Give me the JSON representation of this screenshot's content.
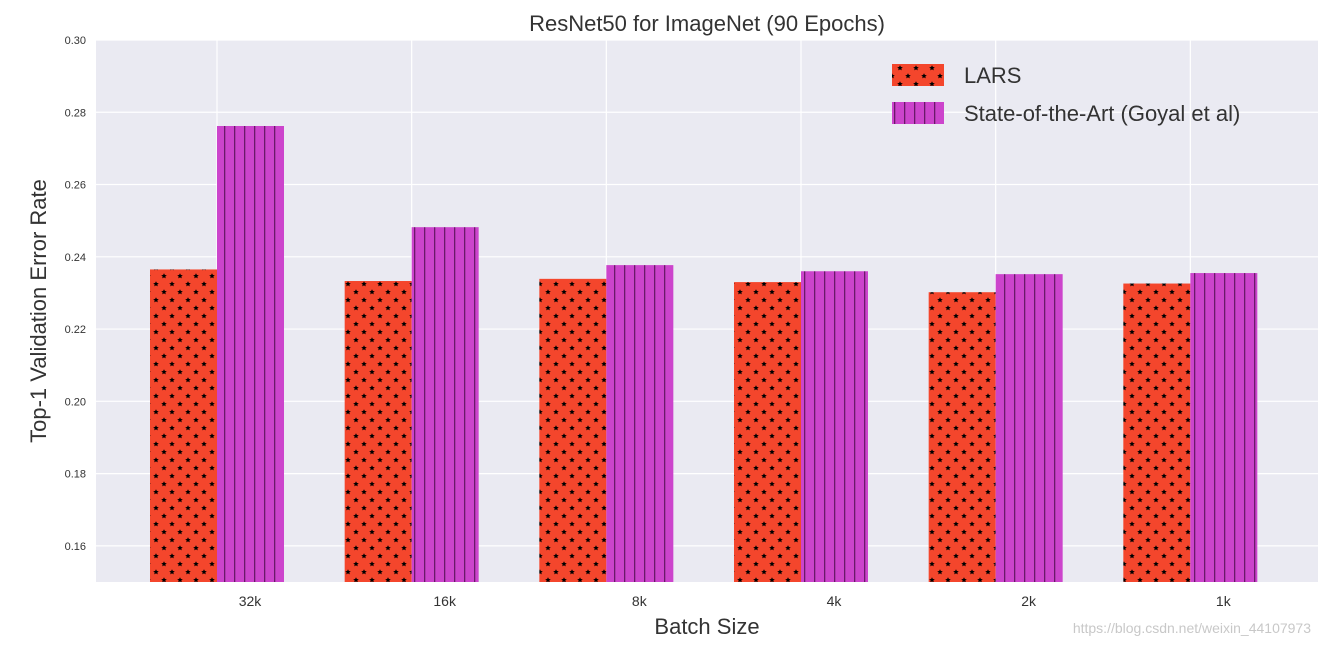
{
  "chart_data": {
    "type": "bar",
    "title": "ResNet50 for ImageNet (90 Epochs)",
    "xlabel": "Batch Size",
    "ylabel": "Top-1 Validation Error Rate",
    "categories": [
      "32k",
      "16k",
      "8k",
      "4k",
      "2k",
      "1k"
    ],
    "ylim": [
      0.15,
      0.3
    ],
    "yticks": [
      "0.16",
      "0.18",
      "0.20",
      "0.22",
      "0.24",
      "0.26",
      "0.28",
      "0.30"
    ],
    "grid": true,
    "legend_position": "top-right",
    "series": [
      {
        "name": "LARS",
        "color": "#f4462c",
        "pattern": "stars",
        "values": [
          0.2365,
          0.2333,
          0.2339,
          0.233,
          0.2302,
          0.2326
        ]
      },
      {
        "name": "State-of-the-Art (Goyal et al)",
        "color": "#cc44cc",
        "pattern": "vertical-lines",
        "values": [
          0.2762,
          0.2482,
          0.2377,
          0.236,
          0.2352,
          0.2355
        ]
      }
    ]
  },
  "watermark": "https://blog.csdn.net/weixin_44107973"
}
